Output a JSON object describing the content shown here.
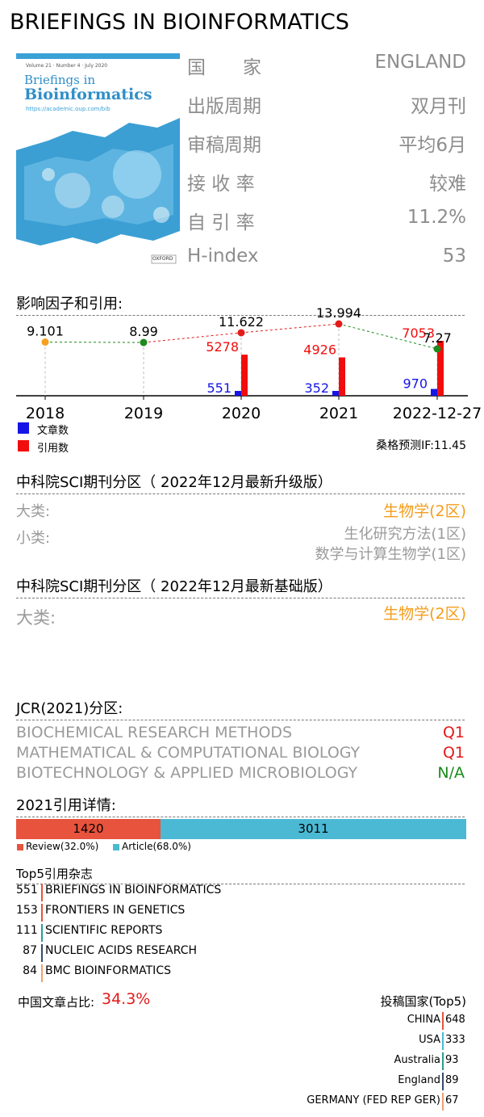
{
  "journal": {
    "title": "BRIEFINGS IN BIOINFORMATICS"
  },
  "cover": {
    "header_text": "Volume 21 · Number 4 · July 2020",
    "title_line1": "Briefings in",
    "title_line2": "Bioinformatics",
    "url": "https://academic.oup.com/bib",
    "publisher": "OXFORD"
  },
  "info": [
    {
      "label": "国　　家",
      "value": "ENGLAND"
    },
    {
      "label": "出版周期",
      "value": "双月刊"
    },
    {
      "label": "审稿周期",
      "value": "平均6月"
    },
    {
      "label": "接 收 率",
      "value": "较难"
    },
    {
      "label": "自 引 率",
      "value": "11.2%"
    },
    {
      "label": "H-index",
      "value": "53"
    }
  ],
  "impact_section": {
    "title": "影响因子和引用:",
    "legend_articles": "文章数",
    "legend_citations": "引用数",
    "forecast": "桑格预测IF:11.45"
  },
  "chart_data": {
    "type": "bar",
    "categories": [
      "2018",
      "2019",
      "2020",
      "2021",
      "2022-12-27"
    ],
    "impact_factor": [
      9.101,
      8.99,
      11.622,
      13.994,
      7.27
    ],
    "impact_factor_labels": [
      "9.101",
      "8.99",
      "11.622",
      "13.994",
      "7.27"
    ],
    "series": [
      {
        "name": "文章数",
        "values": [
          null,
          null,
          551,
          352,
          970
        ],
        "color": "#1515e6"
      },
      {
        "name": "引用数",
        "values": [
          null,
          null,
          5278,
          4926,
          7053
        ],
        "color": "#f20d0d"
      }
    ],
    "if_point_colors": [
      "#f5a11e",
      "#1c8a1c",
      "#e31b1b",
      "#e31b1b",
      "#1c8a1c"
    ]
  },
  "cas_upgrade": {
    "title": "中科院SCI期刊分区（ 2022年12月最新升级版）",
    "major_label": "大类:",
    "major_value": "生物学(2区)",
    "minor_label": "小类:",
    "minor_values": [
      "生化研究方法(1区)",
      "数学与计算生物学(1区)"
    ]
  },
  "cas_basic": {
    "title": "中科院SCI期刊分区（ 2022年12月最新基础版）",
    "major_label": "大类:",
    "major_value": "生物学(2区)"
  },
  "jcr": {
    "title": "JCR(2021)分区:",
    "rows": [
      {
        "category": "BIOCHEMICAL RESEARCH METHODS",
        "quartile": "Q1",
        "color": "#e51919"
      },
      {
        "category": "MATHEMATICAL & COMPUTATIONAL BIOLOGY",
        "quartile": "Q1",
        "color": "#e51919"
      },
      {
        "category": "BIOTECHNOLOGY & APPLIED MICROBIOLOGY",
        "quartile": "N/A",
        "color": "#1b8a1b"
      }
    ]
  },
  "citations_2021": {
    "title": "2021引用详情:",
    "review_count": "1420",
    "article_count": "3011",
    "review_share": 0.32,
    "review_legend": "Review(32.0%)",
    "article_legend": "Article(68.0%)"
  },
  "top5": {
    "title": "Top5引用杂志",
    "rows": [
      {
        "count": "551",
        "name": "BRIEFINGS IN BIOINFORMATICS",
        "color": "#e7533d"
      },
      {
        "count": "153",
        "name": "FRONTIERS IN GENETICS",
        "color": "#e7533d"
      },
      {
        "count": "111",
        "name": "SCIENTIFIC REPORTS",
        "color": "#2a9d8f"
      },
      {
        "count": "87",
        "name": "NUCLEIC ACIDS RESEARCH",
        "color": "#3a4a6b"
      },
      {
        "count": "84",
        "name": "BMC BIOINFORMATICS",
        "color": "#f0a070"
      }
    ]
  },
  "china_share": {
    "label": "中国文章占比:",
    "value": "34.3%"
  },
  "countries": {
    "title": "投稿国家(Top5)",
    "rows": [
      {
        "name": "CHINA",
        "count": "648",
        "color": "#e7533d"
      },
      {
        "name": "USA",
        "count": "333",
        "color": "#4bb9d3"
      },
      {
        "name": "Australia",
        "count": "93",
        "color": "#2a9d8f"
      },
      {
        "name": "England",
        "count": "89",
        "color": "#3a4a6b"
      },
      {
        "name": "GERMANY (FED REP GER)",
        "count": "67",
        "color": "#f0a070"
      }
    ]
  }
}
